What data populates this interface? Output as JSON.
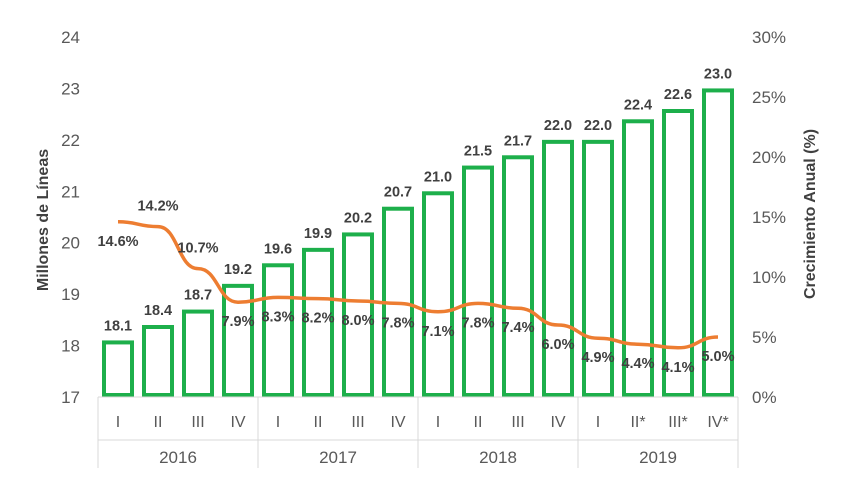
{
  "chart_data": {
    "type": "bar",
    "title": "",
    "categories": [
      "I",
      "II",
      "III",
      "IV",
      "I",
      "II",
      "III",
      "IV",
      "I",
      "II",
      "III",
      "IV",
      "I",
      "II*",
      "III*",
      "IV*"
    ],
    "groups": [
      {
        "label": "2016",
        "count": 4
      },
      {
        "label": "2017",
        "count": 4
      },
      {
        "label": "2018",
        "count": 4
      },
      {
        "label": "2019",
        "count": 4
      }
    ],
    "ylabel": "Millones de Líneas",
    "y2label": "Crecimiento Anual (%)",
    "ylim": [
      17,
      24
    ],
    "yticks": [
      "17",
      "18",
      "19",
      "20",
      "21",
      "22",
      "23",
      "24"
    ],
    "y2lim": [
      0,
      30
    ],
    "y2ticks": [
      "0%",
      "5%",
      "10%",
      "15%",
      "20%",
      "25%",
      "30%"
    ],
    "series": [
      {
        "name": "",
        "type": "bar",
        "values": [
          18.1,
          18.4,
          18.7,
          19.2,
          19.6,
          19.9,
          20.2,
          20.7,
          21.0,
          21.5,
          21.7,
          22.0,
          22.0,
          22.4,
          22.6,
          23.0
        ],
        "labels": [
          "18.1",
          "18.4",
          "18.7",
          "19.2",
          "19.6",
          "19.9",
          "20.2",
          "20.7",
          "21.0",
          "21.5",
          "21.7",
          "22.0",
          "22.0",
          "22.4",
          "22.6",
          "23.0"
        ],
        "color": "#1DAF4B"
      },
      {
        "name": "",
        "type": "line",
        "axis": "secondary",
        "values": [
          14.6,
          14.2,
          10.7,
          7.9,
          8.3,
          8.2,
          8.0,
          7.8,
          7.1,
          7.8,
          7.4,
          6.0,
          4.9,
          4.4,
          4.1,
          5.0
        ],
        "labels": [
          "14.6%",
          "14.2%",
          "10.7%",
          "7.9%",
          "8.3%",
          "8.2%",
          "8.0%",
          "7.8%",
          "7.1%",
          "7.8%",
          "7.4%",
          "6.0%",
          "4.9%",
          "4.4%",
          "4.1%",
          "5.0%"
        ],
        "color": "#ED7D31"
      }
    ],
    "grid": false,
    "legend": "none"
  }
}
